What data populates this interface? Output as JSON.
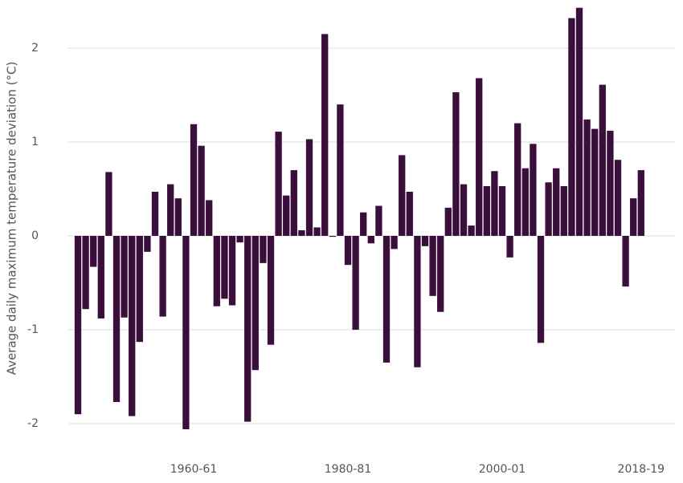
{
  "chart_data": {
    "type": "bar",
    "y_label": "Average daily maximum temperature deviation (°C)",
    "categories": [
      null,
      null,
      null,
      null,
      null,
      null,
      null,
      null,
      null,
      null,
      null,
      null,
      null,
      null,
      null,
      "1960-61",
      null,
      null,
      null,
      null,
      null,
      null,
      null,
      null,
      null,
      null,
      null,
      null,
      null,
      null,
      null,
      null,
      null,
      null,
      null,
      "1980-81",
      null,
      null,
      null,
      null,
      null,
      null,
      null,
      null,
      null,
      null,
      null,
      null,
      null,
      null,
      null,
      null,
      null,
      null,
      null,
      "2000-01",
      null,
      null,
      null,
      null,
      null,
      null,
      null,
      null,
      null,
      null,
      null,
      null,
      null,
      null,
      null,
      null,
      null,
      "2018-19"
    ],
    "values": [
      -1.9,
      -0.78,
      -0.33,
      -0.88,
      0.68,
      -1.77,
      -0.87,
      -1.92,
      -1.13,
      -0.17,
      0.47,
      -0.86,
      0.55,
      0.4,
      -2.06,
      1.19,
      0.96,
      0.38,
      -0.75,
      -0.67,
      -0.74,
      -0.07,
      -1.98,
      -1.43,
      -0.29,
      -1.16,
      1.11,
      0.43,
      0.7,
      0.06,
      1.03,
      0.09,
      2.15,
      -0.01,
      1.4,
      -0.31,
      -1.0,
      0.25,
      -0.08,
      0.32,
      -1.35,
      -0.14,
      0.86,
      0.47,
      -1.4,
      -0.11,
      -0.64,
      -0.81,
      0.3,
      1.53,
      0.55,
      0.11,
      1.68,
      0.53,
      0.69,
      0.53,
      -0.23,
      1.2,
      0.72,
      0.98,
      -1.14,
      0.57,
      0.72,
      0.53,
      2.32,
      2.43,
      1.24,
      1.14,
      1.61,
      1.12,
      0.81,
      -0.54,
      0.4,
      0.7
    ],
    "color": "#3a0f3b",
    "ylim": [
      -2.15,
      2.45
    ],
    "yticks": [
      -2,
      -1,
      0,
      1,
      2
    ],
    "grid": true
  }
}
